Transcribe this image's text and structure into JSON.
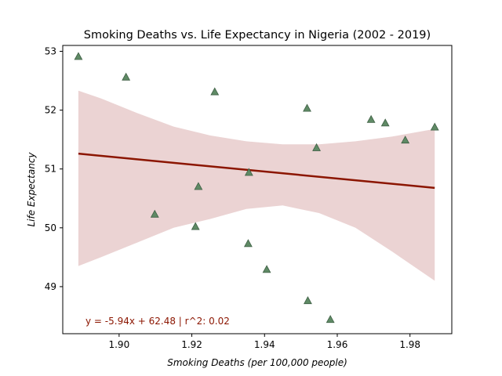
{
  "chart_data": {
    "type": "scatter",
    "title": "Smoking Deaths vs. Life Expectancy in Nigeria (2002 - 2019)",
    "xlabel": "Smoking Deaths (per 100,000 people)",
    "ylabel": "Life Expectancy",
    "xlim": [
      1.8845,
      1.9915
    ],
    "ylim": [
      48.2,
      53.1
    ],
    "xticks": [
      1.9,
      1.92,
      1.94,
      1.96,
      1.98
    ],
    "xtick_labels": [
      "1.90",
      "1.92",
      "1.94",
      "1.96",
      "1.98"
    ],
    "yticks": [
      49,
      50,
      51,
      52,
      53
    ],
    "ytick_labels": [
      "49",
      "50",
      "51",
      "52",
      "53"
    ],
    "grid": false,
    "points": [
      {
        "x": 1.8888,
        "y": 52.91
      },
      {
        "x": 1.9019,
        "y": 52.56
      },
      {
        "x": 1.9098,
        "y": 50.23
      },
      {
        "x": 1.921,
        "y": 50.02
      },
      {
        "x": 1.9218,
        "y": 50.7
      },
      {
        "x": 1.9263,
        "y": 52.31
      },
      {
        "x": 1.9355,
        "y": 49.73
      },
      {
        "x": 1.9357,
        "y": 50.94
      },
      {
        "x": 1.9406,
        "y": 49.29
      },
      {
        "x": 1.9517,
        "y": 52.03
      },
      {
        "x": 1.9519,
        "y": 48.76
      },
      {
        "x": 1.9543,
        "y": 51.36
      },
      {
        "x": 1.9581,
        "y": 48.44
      },
      {
        "x": 1.9693,
        "y": 51.84
      },
      {
        "x": 1.9732,
        "y": 51.78
      },
      {
        "x": 1.9787,
        "y": 51.49
      },
      {
        "x": 1.9868,
        "y": 51.71
      }
    ],
    "regression": {
      "slope": -5.94,
      "intercept": 62.48,
      "x_range": [
        1.8888,
        1.9868
      ]
    },
    "confidence_band": {
      "x": [
        1.8888,
        1.895,
        1.905,
        1.915,
        1.925,
        1.935,
        1.945,
        1.955,
        1.965,
        1.975,
        1.9868
      ],
      "upper": [
        52.33,
        52.2,
        51.95,
        51.72,
        51.57,
        51.47,
        51.42,
        51.42,
        51.47,
        51.55,
        51.68
      ],
      "lower": [
        49.35,
        49.5,
        49.75,
        50.0,
        50.15,
        50.32,
        50.38,
        50.25,
        50.0,
        49.6,
        49.1
      ]
    },
    "annotation": "y = -5.94x + 62.48 | r^2: 0.02",
    "colors": {
      "marker_fill": "#5f8a65",
      "marker_edge": "#3e5f44",
      "line": "#8b1500",
      "band": "#ebd3d3",
      "annotation": "#8b1500"
    }
  }
}
